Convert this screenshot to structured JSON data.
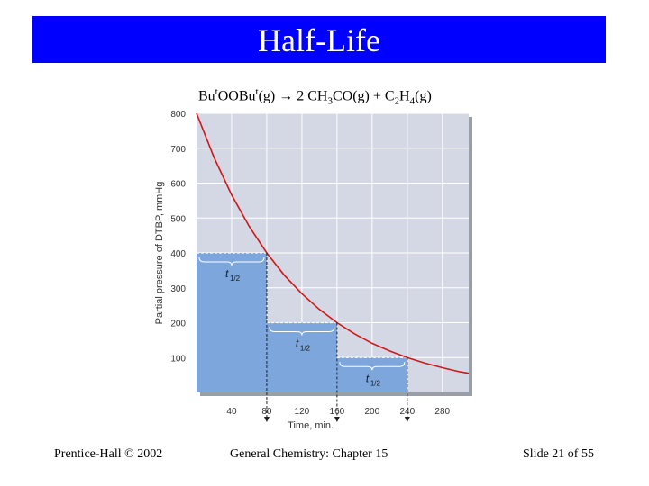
{
  "slide": {
    "title": "Half-Life",
    "equation": {
      "reactant_pre": "Bu",
      "reactant_sup1": "t",
      "reactant_mid": "OOBu",
      "reactant_sup2": "t",
      "reactant_post": "(g) → 2 CH",
      "sub1": "3",
      "mid2": "CO(g) + C",
      "sub2": "2",
      "mid3": "H",
      "sub3": "4",
      "end": "(g)"
    },
    "footer_left": "Prentice-Hall © 2002",
    "footer_center": "General Chemistry: Chapter 15",
    "footer_right": "Slide 21 of 55"
  },
  "colors": {
    "title_bg": "#0000ff",
    "plot_bg": "#d4d8e4",
    "curve": "#d01818",
    "block": "#7da7dc",
    "grid": "#ffffff"
  },
  "chart_data": {
    "type": "line",
    "xlabel": "Time, min.",
    "ylabel": "Partial pressure of DTBP, mmHg",
    "xlim": [
      0,
      310
    ],
    "ylim": [
      0,
      800
    ],
    "x_ticks": [
      40,
      80,
      120,
      160,
      200,
      240,
      280
    ],
    "y_ticks": [
      100,
      200,
      300,
      400,
      500,
      600,
      700,
      800
    ],
    "grid": true,
    "curve": {
      "x": [
        0,
        20,
        40,
        60,
        80,
        100,
        120,
        140,
        160,
        180,
        200,
        220,
        240,
        260,
        280,
        300,
        310
      ],
      "y": [
        800,
        673,
        566,
        476,
        400,
        336,
        283,
        238,
        200,
        168,
        141,
        119,
        100,
        84,
        71,
        59,
        55
      ]
    },
    "half_life_blocks": [
      {
        "x0": 0,
        "x1": 80,
        "y": 400,
        "label_main": "t",
        "label_sub": "1/2"
      },
      {
        "x0": 80,
        "x1": 160,
        "y": 200,
        "label_main": "t",
        "label_sub": "1/2"
      },
      {
        "x0": 160,
        "x1": 240,
        "y": 100,
        "label_main": "t",
        "label_sub": "1/2"
      }
    ]
  }
}
